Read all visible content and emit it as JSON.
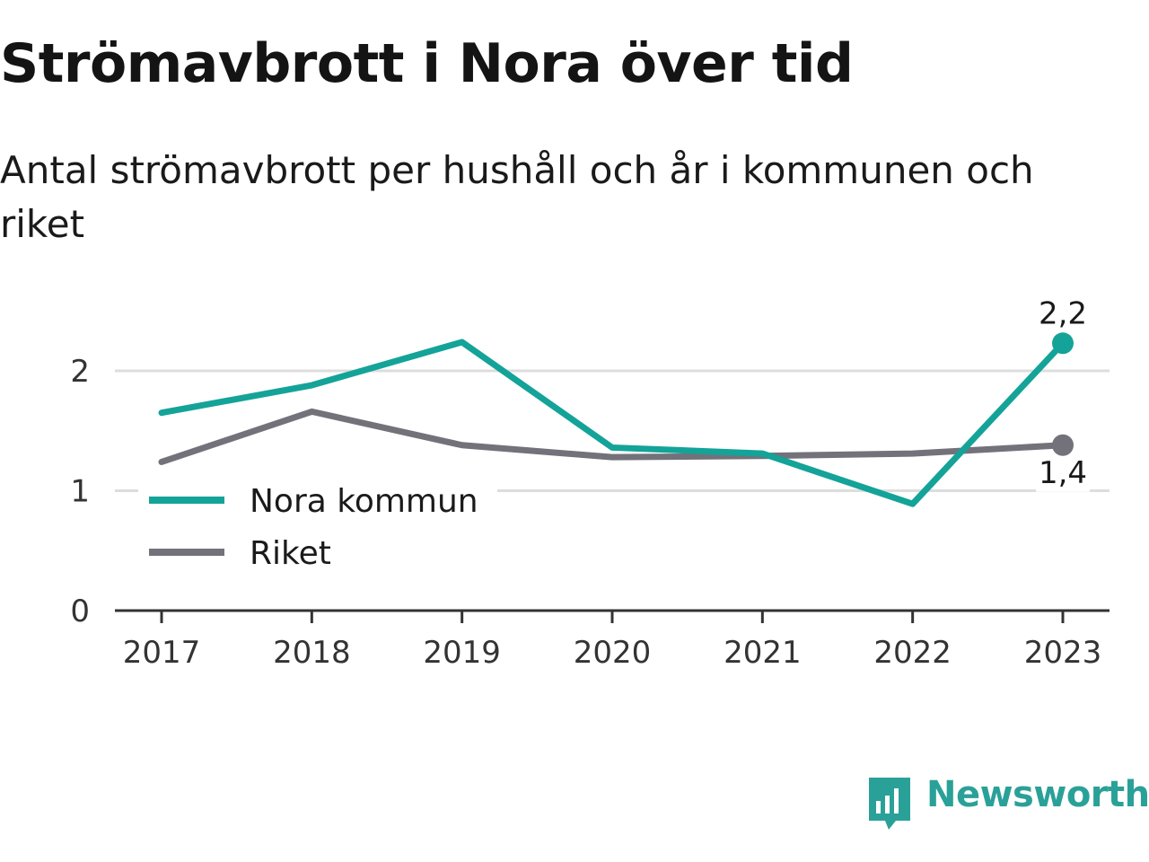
{
  "chart_data": {
    "type": "line",
    "title": "Strömavbrott i Nora över tid",
    "subtitle": "Antal strömavbrott per hushåll och år i kommunen och riket",
    "categories": [
      "2017",
      "2018",
      "2019",
      "2020",
      "2021",
      "2022",
      "2023"
    ],
    "series": [
      {
        "name": "Nora kommun",
        "color": "#14a398",
        "values": [
          1.65,
          1.88,
          2.24,
          1.36,
          1.31,
          0.89,
          2.23
        ]
      },
      {
        "name": "Riket",
        "color": "#73727a",
        "values": [
          1.24,
          1.66,
          1.38,
          1.28,
          1.29,
          1.31,
          1.38
        ]
      }
    ],
    "end_labels": [
      "2,2",
      "1,4"
    ],
    "yticks": [
      "0",
      "1",
      "2"
    ],
    "ylim": [
      0,
      2.5
    ],
    "grid": true,
    "legend_position": "bottom-left"
  },
  "branding": {
    "name": "Newsworthy",
    "color": "#2aa198"
  }
}
